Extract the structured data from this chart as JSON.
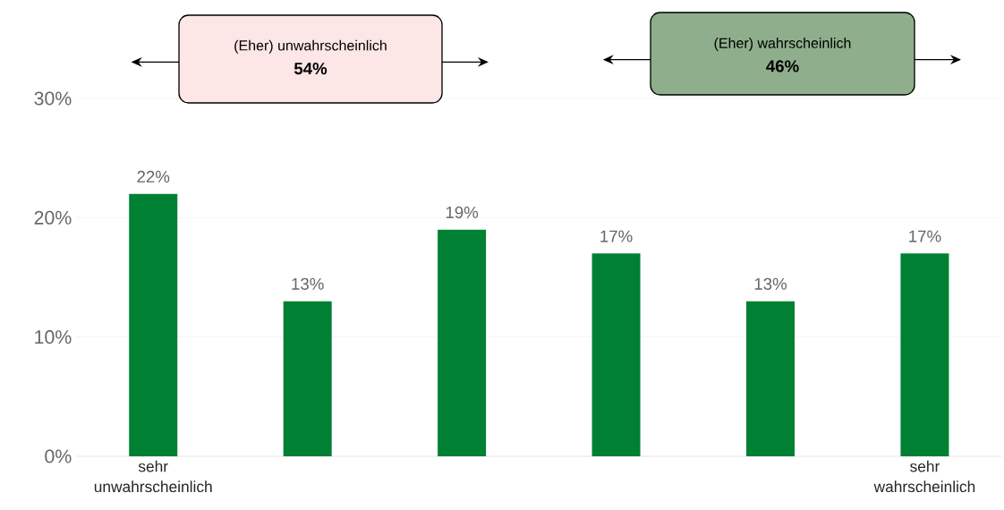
{
  "chart_data": {
    "type": "bar",
    "categories": [
      "sehr unwahrscheinlich",
      null,
      null,
      null,
      null,
      "sehr wahrscheinlich"
    ],
    "values": [
      22,
      13,
      19,
      17,
      13,
      17
    ],
    "value_labels": [
      "22%",
      "13%",
      "19%",
      "17%",
      "13%",
      "17%"
    ],
    "color": "#008033",
    "ylim": [
      0,
      30
    ],
    "yticks": [
      {
        "value": 0,
        "label": "0%"
      },
      {
        "value": 10,
        "label": "10%"
      },
      {
        "value": 20,
        "label": "20%"
      },
      {
        "value": 30,
        "label": "30%"
      }
    ],
    "grid": "y",
    "annotations": [
      "(Eher) unwahrscheinlich",
      "54%",
      "(Eher) wahrscheinlich",
      "46%"
    ]
  }
}
